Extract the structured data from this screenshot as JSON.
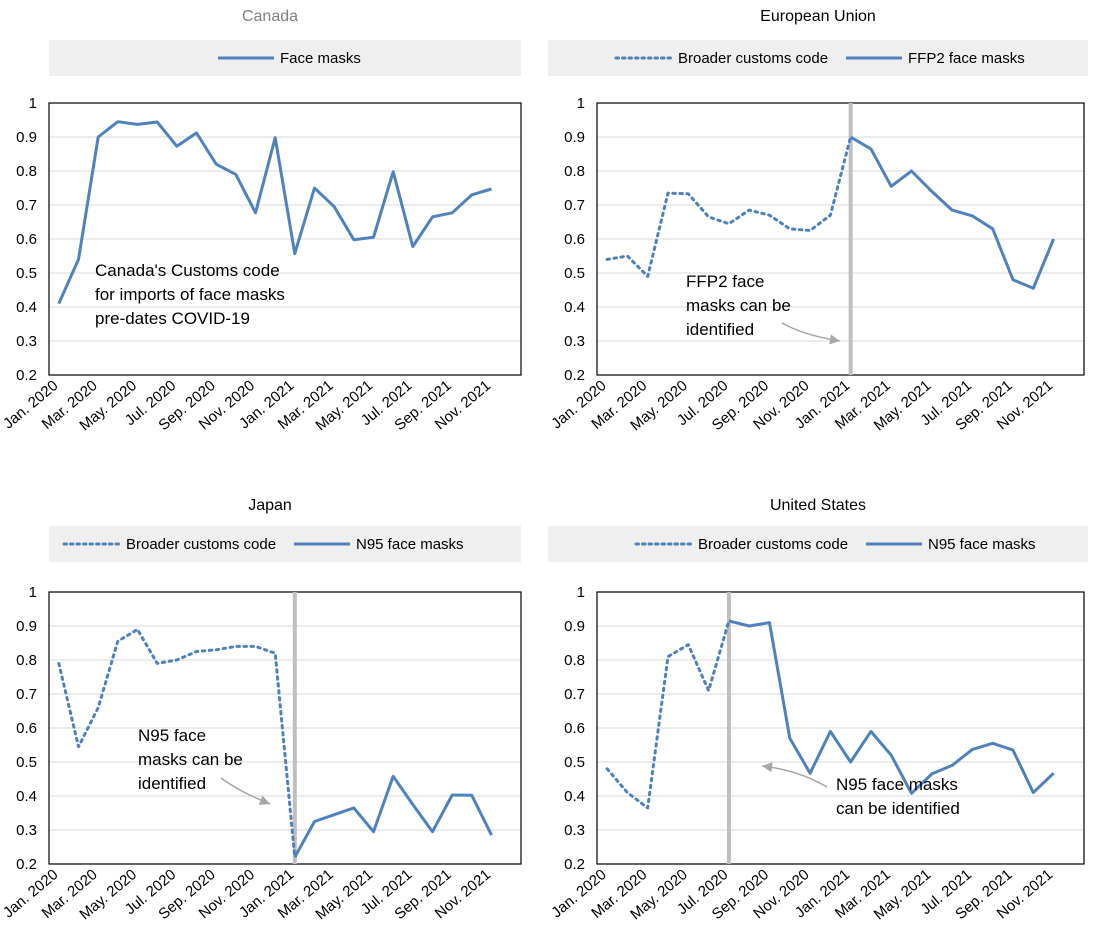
{
  "colors": {
    "series": "#4f81bd",
    "grid": "#d9d9d9",
    "legend_bg": "#efefef",
    "marker": "#bfbfbf",
    "title_gray": "#7f7f7f"
  },
  "chart_data": [
    {
      "type": "line",
      "title": "Canada",
      "xlabel": "",
      "ylabel": "",
      "ylim": [
        0.2,
        1
      ],
      "yticks": [
        "0.2",
        "0.3",
        "0.4",
        "0.5",
        "0.6",
        "0.7",
        "0.8",
        "0.9",
        "1"
      ],
      "x": [
        "Jan. 2020",
        "Feb. 2020",
        "Mar. 2020",
        "Apr. 2020",
        "May. 2020",
        "Jun. 2020",
        "Jul. 2020",
        "Aug. 2020",
        "Sep. 2020",
        "Oct. 2020",
        "Nov. 2020",
        "Dec. 2020",
        "Jan. 2021",
        "Feb. 2021",
        "Mar. 2021",
        "Apr. 2021",
        "May. 2021",
        "Jun. 2021",
        "Jul. 2021",
        "Aug. 2021",
        "Sep. 2021",
        "Oct. 2021",
        "Nov. 2021",
        "Dec. 2021"
      ],
      "xtick_labels": [
        "Jan. 2020",
        "Mar. 2020",
        "May. 2020",
        "Jul. 2020",
        "Sep. 2020",
        "Nov. 2020",
        "Jan. 2021",
        "Mar. 2021",
        "May. 2021",
        "Jul. 2021",
        "Sep. 2021",
        "Nov. 2021"
      ],
      "grid": true,
      "legend_position": "top",
      "series": [
        {
          "name": "Face masks",
          "style": "solid",
          "values": [
            0.41,
            0.54,
            0.9,
            0.945,
            0.937,
            0.944,
            0.873,
            0.912,
            0.82,
            0.79,
            0.677,
            0.898,
            0.557,
            0.75,
            0.695,
            0.598,
            0.605,
            0.798,
            0.578,
            0.665,
            0.677,
            0.73,
            0.747,
            null
          ]
        }
      ],
      "annotation": {
        "lines": [
          "Canada's Customs code",
          "for imports of face masks",
          "pre-dates COVID-19"
        ]
      }
    },
    {
      "type": "line",
      "title": "European Union",
      "xlabel": "",
      "ylabel": "",
      "ylim": [
        0.2,
        1
      ],
      "yticks": [
        "0.2",
        "0.3",
        "0.4",
        "0.5",
        "0.6",
        "0.7",
        "0.8",
        "0.9",
        "1"
      ],
      "x": [
        "Jan. 2020",
        "Feb. 2020",
        "Mar. 2020",
        "Apr. 2020",
        "May. 2020",
        "Jun. 2020",
        "Jul. 2020",
        "Aug. 2020",
        "Sep. 2020",
        "Oct. 2020",
        "Nov. 2020",
        "Dec. 2020",
        "Jan. 2021",
        "Feb. 2021",
        "Mar. 2021",
        "Apr. 2021",
        "May. 2021",
        "Jun. 2021",
        "Jul. 2021",
        "Aug. 2021",
        "Sep. 2021",
        "Oct. 2021",
        "Nov. 2021",
        "Dec. 2021"
      ],
      "xtick_labels": [
        "Jan. 2020",
        "Mar. 2020",
        "May. 2020",
        "Jul. 2020",
        "Sep. 2020",
        "Nov. 2020",
        "Jan. 2021",
        "Mar. 2021",
        "May. 2021",
        "Jul. 2021",
        "Sep. 2021",
        "Nov. 2021"
      ],
      "grid": true,
      "legend_position": "top",
      "marker_index": 12,
      "series": [
        {
          "name": "Broader customs code",
          "style": "dotted",
          "values": [
            0.54,
            0.55,
            0.49,
            0.735,
            0.733,
            0.665,
            0.645,
            0.685,
            0.67,
            0.63,
            0.625,
            0.67,
            0.9,
            null,
            null,
            null,
            null,
            null,
            null,
            null,
            null,
            null,
            null,
            null
          ]
        },
        {
          "name": "FFP2 face masks",
          "style": "solid",
          "values": [
            null,
            null,
            null,
            null,
            null,
            null,
            null,
            null,
            null,
            null,
            null,
            null,
            0.9,
            0.865,
            0.755,
            0.8,
            0.74,
            0.685,
            0.668,
            0.63,
            0.48,
            0.455,
            0.6,
            null
          ]
        }
      ],
      "annotation": {
        "lines": [
          "FFP2 face",
          "masks can be",
          "identified"
        ]
      }
    },
    {
      "type": "line",
      "title": "Japan",
      "xlabel": "",
      "ylabel": "",
      "ylim": [
        0.2,
        1
      ],
      "yticks": [
        "0.2",
        "0.3",
        "0.4",
        "0.5",
        "0.6",
        "0.7",
        "0.8",
        "0.9",
        "1"
      ],
      "x": [
        "Jan. 2020",
        "Feb. 2020",
        "Mar. 2020",
        "Apr. 2020",
        "May. 2020",
        "Jun. 2020",
        "Jul. 2020",
        "Aug. 2020",
        "Sep. 2020",
        "Oct. 2020",
        "Nov. 2020",
        "Dec. 2020",
        "Jan. 2021",
        "Feb. 2021",
        "Mar. 2021",
        "Apr. 2021",
        "May. 2021",
        "Jun. 2021",
        "Jul. 2021",
        "Aug. 2021",
        "Sep. 2021",
        "Oct. 2021",
        "Nov. 2021",
        "Dec. 2021"
      ],
      "xtick_labels": [
        "Jan. 2020",
        "Mar. 2020",
        "May. 2020",
        "Jul. 2020",
        "Sep. 2020",
        "Nov. 2020",
        "Jan. 2021",
        "Mar. 2021",
        "May. 2021",
        "Jul. 2021",
        "Sep. 2021",
        "Nov. 2021"
      ],
      "grid": true,
      "legend_position": "top",
      "marker_index": 12,
      "series": [
        {
          "name": "Broader customs code",
          "style": "dotted",
          "values": [
            0.79,
            0.545,
            0.66,
            0.855,
            0.89,
            0.79,
            0.8,
            0.825,
            0.83,
            0.84,
            0.84,
            0.82,
            0.22,
            null,
            null,
            null,
            null,
            null,
            null,
            null,
            null,
            null,
            null,
            null
          ]
        },
        {
          "name": "N95 face masks",
          "style": "solid",
          "values": [
            null,
            null,
            null,
            null,
            null,
            null,
            null,
            null,
            null,
            null,
            null,
            null,
            0.22,
            0.325,
            0.345,
            0.365,
            0.295,
            0.458,
            0.375,
            0.295,
            0.403,
            0.402,
            0.285,
            null
          ]
        }
      ],
      "annotation": {
        "lines": [
          "N95 face",
          "masks can be",
          "identified"
        ]
      }
    },
    {
      "type": "line",
      "title": "United States",
      "xlabel": "",
      "ylabel": "",
      "ylim": [
        0.2,
        1
      ],
      "yticks": [
        "0.2",
        "0.3",
        "0.4",
        "0.5",
        "0.6",
        "0.7",
        "0.8",
        "0.9",
        "1"
      ],
      "x": [
        "Jan. 2020",
        "Feb. 2020",
        "Mar. 2020",
        "Apr. 2020",
        "May. 2020",
        "Jun. 2020",
        "Jul. 2020",
        "Aug. 2020",
        "Sep. 2020",
        "Oct. 2020",
        "Nov. 2020",
        "Dec. 2020",
        "Jan. 2021",
        "Feb. 2021",
        "Mar. 2021",
        "Apr. 2021",
        "May. 2021",
        "Jun. 2021",
        "Jul. 2021",
        "Aug. 2021",
        "Sep. 2021",
        "Oct. 2021",
        "Nov. 2021",
        "Dec. 2021"
      ],
      "xtick_labels": [
        "Jan. 2020",
        "Mar. 2020",
        "May. 2020",
        "Jul. 2020",
        "Sep. 2020",
        "Nov. 2020",
        "Jan. 2021",
        "Mar. 2021",
        "May. 2021",
        "Jul. 2021",
        "Sep. 2021",
        "Nov. 2021"
      ],
      "grid": true,
      "legend_position": "top",
      "marker_index": 6,
      "series": [
        {
          "name": "Broader customs code",
          "style": "dotted",
          "values": [
            0.48,
            0.41,
            0.365,
            0.81,
            0.845,
            0.71,
            0.915,
            null,
            null,
            null,
            null,
            null,
            null,
            null,
            null,
            null,
            null,
            null,
            null,
            null,
            null,
            null,
            null,
            null
          ]
        },
        {
          "name": "N95 face masks",
          "style": "solid",
          "values": [
            null,
            null,
            null,
            null,
            null,
            null,
            0.915,
            0.9,
            0.91,
            0.57,
            0.467,
            0.59,
            0.5,
            0.59,
            0.52,
            0.408,
            0.465,
            0.49,
            0.537,
            0.555,
            0.535,
            0.41,
            0.467,
            null
          ]
        }
      ],
      "annotation": {
        "lines": [
          "N95 face masks",
          "can be identified"
        ]
      }
    }
  ]
}
